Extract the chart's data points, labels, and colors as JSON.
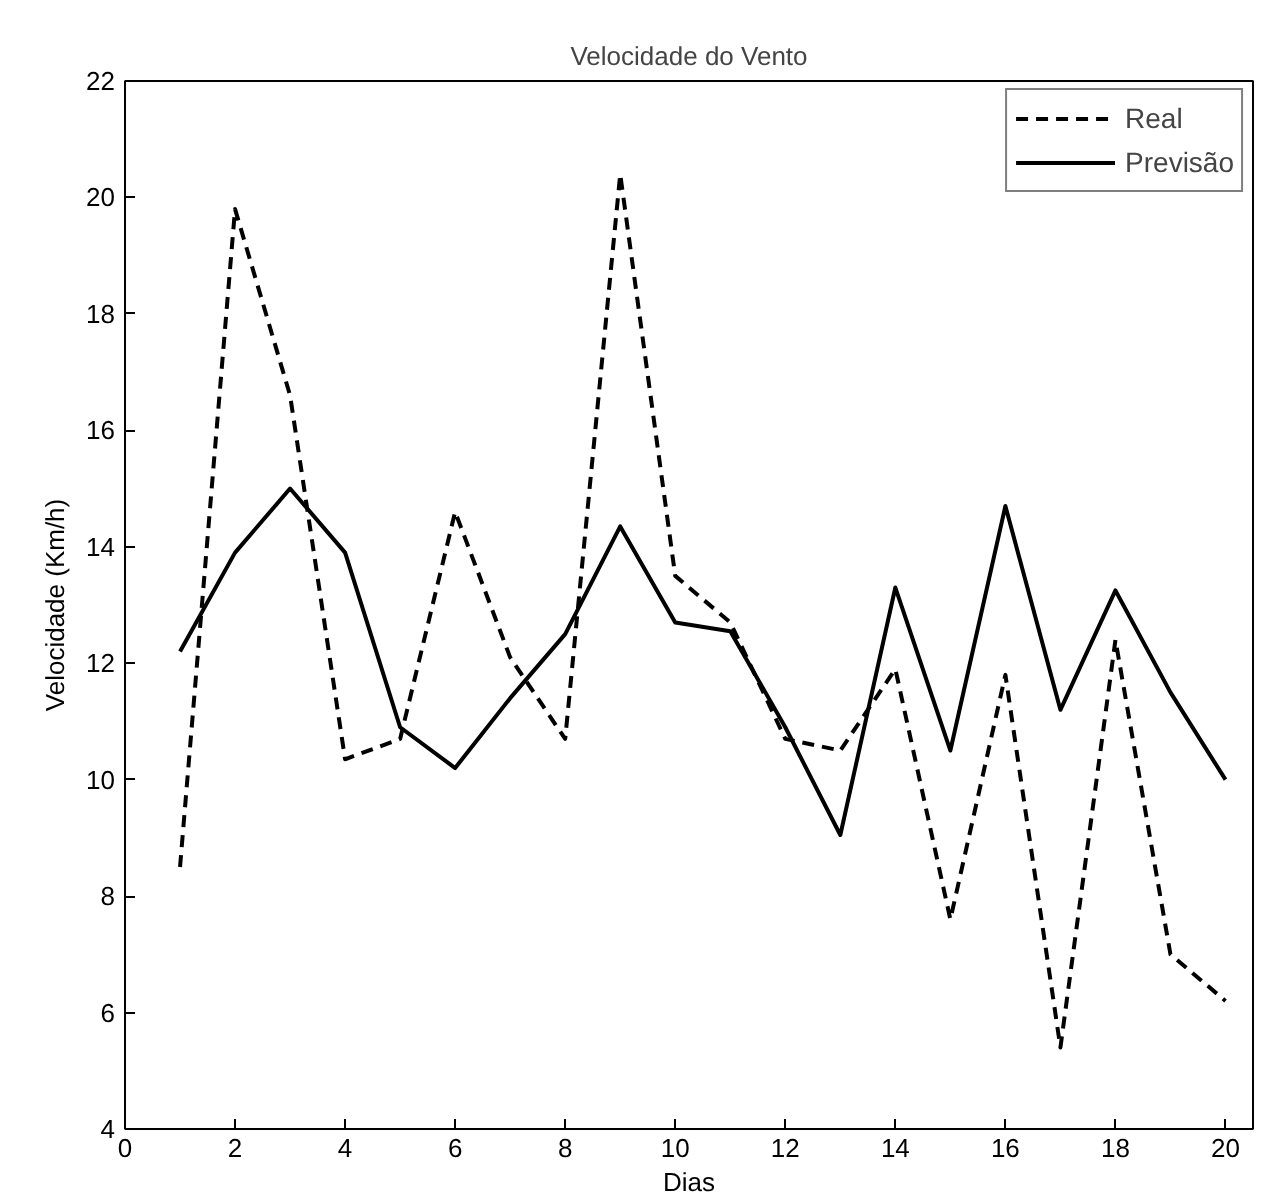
{
  "chart_data": {
    "type": "line",
    "title": "Velocidade do Vento",
    "xlabel": "Dias",
    "ylabel": "Velocidade (Km/h)",
    "x": [
      1,
      2,
      3,
      4,
      5,
      6,
      7,
      8,
      9,
      10,
      11,
      12,
      13,
      14,
      15,
      16,
      17,
      18,
      19,
      20
    ],
    "series": [
      {
        "name": "Real",
        "color": "#000000",
        "line_style": "dashed",
        "values": [
          8.5,
          19.8,
          16.6,
          10.35,
          10.7,
          14.6,
          12.1,
          10.7,
          20.4,
          13.5,
          12.7,
          10.7,
          10.5,
          11.9,
          7.6,
          11.8,
          5.4,
          12.4,
          7.0,
          6.2
        ]
      },
      {
        "name": "Previsão",
        "color": "#000000",
        "line_style": "solid",
        "values": [
          12.2,
          13.9,
          15.0,
          13.9,
          10.9,
          10.2,
          11.4,
          12.5,
          14.35,
          12.7,
          12.55,
          10.9,
          9.05,
          13.3,
          10.5,
          14.7,
          11.2,
          13.25,
          11.5,
          10.0
        ]
      }
    ],
    "xlim": [
      0,
      20.5
    ],
    "xticks": [
      0,
      2,
      4,
      6,
      8,
      10,
      12,
      14,
      16,
      18,
      20
    ],
    "ylim": [
      4,
      22
    ],
    "yticks": [
      4,
      6,
      8,
      10,
      12,
      14,
      16,
      18,
      20,
      22
    ],
    "grid": false,
    "legend": "top right",
    "marker": "none"
  }
}
